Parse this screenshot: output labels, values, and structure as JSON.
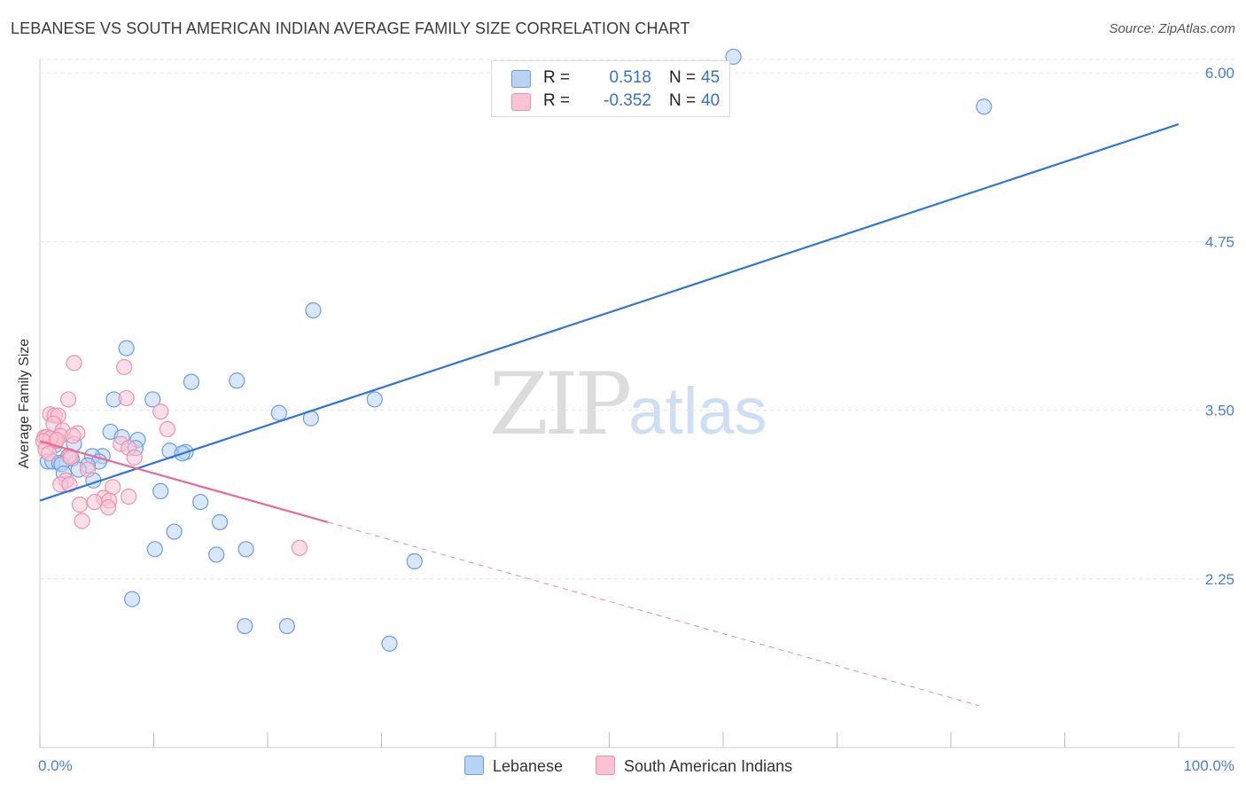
{
  "title": "LEBANESE VS SOUTH AMERICAN INDIAN AVERAGE FAMILY SIZE CORRELATION CHART",
  "source": "Source: ZipAtlas.com",
  "watermark": {
    "zip": "ZIP",
    "atlas": "atlas"
  },
  "legend": {
    "rows": [
      {
        "r_label": "R =",
        "r_value": "0.518",
        "n_label": "N =",
        "n_value": "45"
      },
      {
        "r_label": "R =",
        "r_value": "-0.352",
        "n_label": "N =",
        "n_value": "40"
      }
    ]
  },
  "colors": {
    "lebanese_fill": "#b8d3f5",
    "lebanese_stroke": "#6c9ce0",
    "lebanese_line": "#2f75d6",
    "sai_fill": "#fac3d4",
    "sai_stroke": "#ee91ae",
    "sai_line": "#e96a95",
    "grid": "#e4e4e4",
    "axis": "#cccccc"
  },
  "chart_data": {
    "type": "scatter",
    "title": "LEBANESE VS SOUTH AMERICAN INDIAN AVERAGE FAMILY SIZE CORRELATION CHART",
    "xlabel": "",
    "ylabel": "Average Family Size",
    "xlim": [
      0,
      100
    ],
    "ylim": [
      1.0,
      6.1
    ],
    "x_tick_labels": [
      "0.0%",
      "100.0%"
    ],
    "y_ticks": [
      2.25,
      3.5,
      4.75,
      6.0
    ],
    "y_tick_labels": [
      "2.25",
      "3.50",
      "4.75",
      "6.00"
    ],
    "grid": true,
    "legend_placement": "top-center",
    "series": [
      {
        "name": "Lebanese",
        "r": 0.518,
        "n": 45,
        "points": [
          [
            60.9,
            6.12
          ],
          [
            82.9,
            5.75
          ],
          [
            24.0,
            4.24
          ],
          [
            7.6,
            3.96
          ],
          [
            13.3,
            3.71
          ],
          [
            17.3,
            3.72
          ],
          [
            29.4,
            3.58
          ],
          [
            6.5,
            3.58
          ],
          [
            9.9,
            3.58
          ],
          [
            21.0,
            3.48
          ],
          [
            23.8,
            3.44
          ],
          [
            6.2,
            3.34
          ],
          [
            7.2,
            3.3
          ],
          [
            8.6,
            3.28
          ],
          [
            3.0,
            3.25
          ],
          [
            8.4,
            3.22
          ],
          [
            11.4,
            3.2
          ],
          [
            12.8,
            3.19
          ],
          [
            12.5,
            3.18
          ],
          [
            2.5,
            3.16
          ],
          [
            5.5,
            3.16
          ],
          [
            4.6,
            3.16
          ],
          [
            2.8,
            3.14
          ],
          [
            0.7,
            3.12
          ],
          [
            1.1,
            3.12
          ],
          [
            1.7,
            3.11
          ],
          [
            1.9,
            3.1
          ],
          [
            5.2,
            3.12
          ],
          [
            4.2,
            3.09
          ],
          [
            3.4,
            3.06
          ],
          [
            2.1,
            3.03
          ],
          [
            4.7,
            2.98
          ],
          [
            10.6,
            2.9
          ],
          [
            14.1,
            2.82
          ],
          [
            15.8,
            2.67
          ],
          [
            11.8,
            2.6
          ],
          [
            18.1,
            2.47
          ],
          [
            10.1,
            2.47
          ],
          [
            15.5,
            2.43
          ],
          [
            32.9,
            2.38
          ],
          [
            8.1,
            2.1
          ],
          [
            18.0,
            1.9
          ],
          [
            21.7,
            1.9
          ],
          [
            30.7,
            1.77
          ],
          [
            1.3,
            3.24
          ]
        ],
        "trend": {
          "x0": 0,
          "y0": 2.83,
          "x1": 100,
          "y1": 5.62
        }
      },
      {
        "name": "South American Indians",
        "r": -0.352,
        "n": 40,
        "points": [
          [
            3.0,
            3.85
          ],
          [
            7.4,
            3.82
          ],
          [
            2.5,
            3.58
          ],
          [
            7.6,
            3.59
          ],
          [
            10.6,
            3.49
          ],
          [
            0.9,
            3.47
          ],
          [
            1.3,
            3.46
          ],
          [
            1.6,
            3.46
          ],
          [
            1.2,
            3.4
          ],
          [
            11.2,
            3.36
          ],
          [
            2.0,
            3.35
          ],
          [
            0.4,
            3.3
          ],
          [
            0.6,
            3.3
          ],
          [
            1.8,
            3.31
          ],
          [
            3.3,
            3.33
          ],
          [
            2.9,
            3.31
          ],
          [
            1.4,
            3.27
          ],
          [
            0.9,
            3.29
          ],
          [
            0.3,
            3.27
          ],
          [
            7.1,
            3.25
          ],
          [
            7.8,
            3.22
          ],
          [
            0.5,
            3.21
          ],
          [
            2.6,
            3.16
          ],
          [
            8.3,
            3.15
          ],
          [
            2.7,
            3.15
          ],
          [
            0.8,
            3.18
          ],
          [
            4.2,
            3.06
          ],
          [
            2.3,
            2.98
          ],
          [
            1.8,
            2.95
          ],
          [
            2.6,
            2.95
          ],
          [
            6.4,
            2.93
          ],
          [
            5.6,
            2.85
          ],
          [
            7.8,
            2.86
          ],
          [
            4.8,
            2.82
          ],
          [
            6.1,
            2.83
          ],
          [
            3.5,
            2.8
          ],
          [
            6.0,
            2.78
          ],
          [
            3.7,
            2.68
          ],
          [
            22.8,
            2.48
          ],
          [
            1.5,
            3.28
          ]
        ],
        "trend": {
          "x0": 0,
          "y0": 3.27,
          "x1": 25.3,
          "y1": 2.67
        },
        "trend_dashed": {
          "x0": 25.3,
          "y0": 2.67,
          "x1": 82.5,
          "y1": 1.31
        }
      }
    ]
  }
}
